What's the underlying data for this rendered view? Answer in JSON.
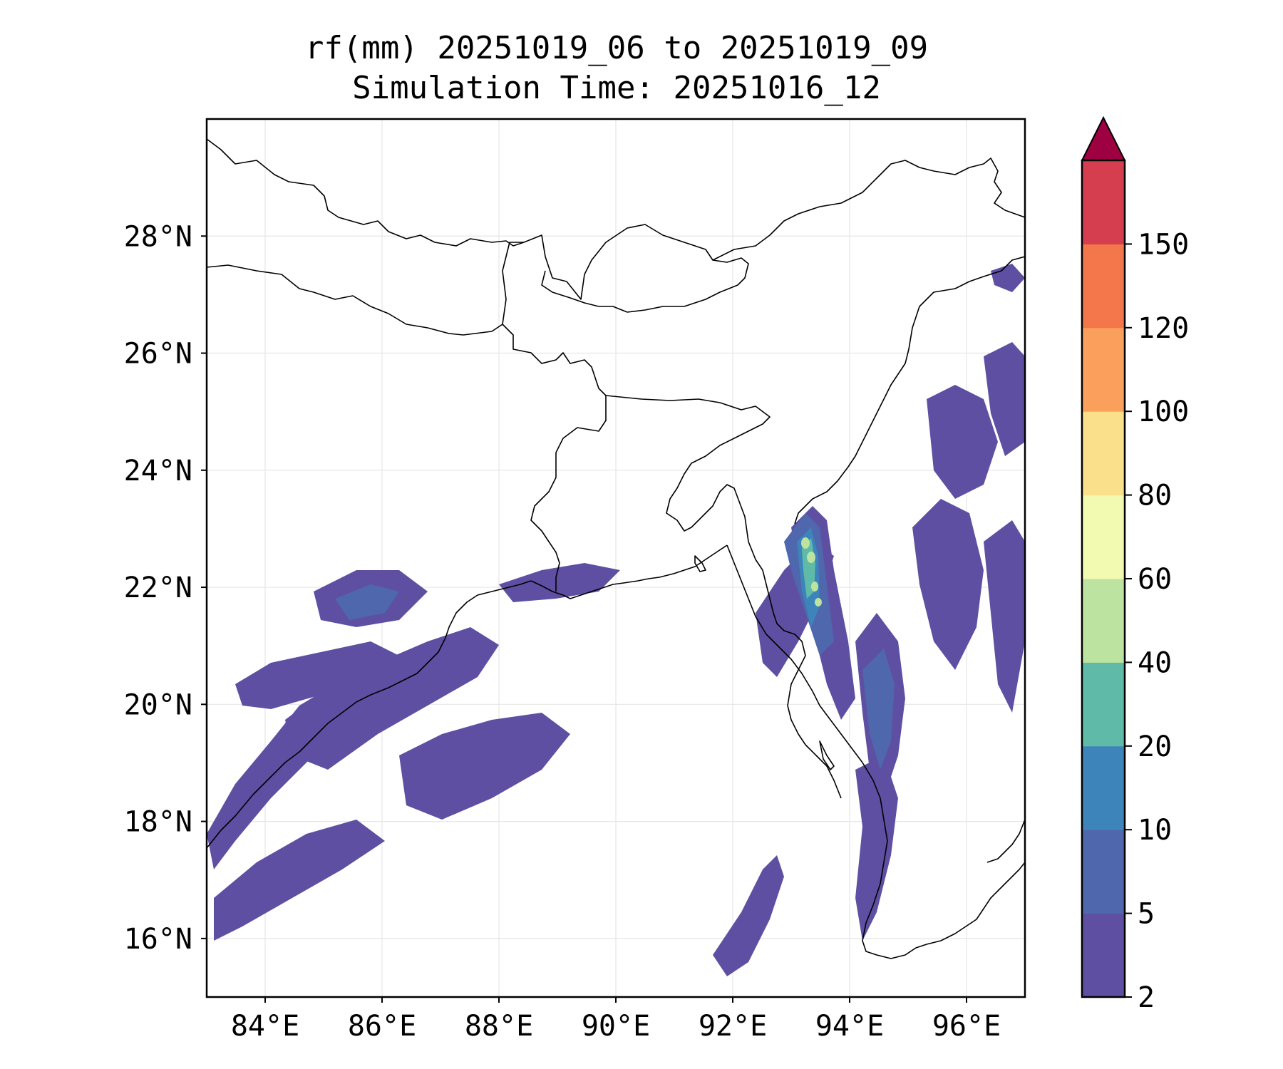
{
  "title": {
    "line1": "rf(mm) 20251019_06 to 20251019_09",
    "line2": "Simulation Time: 20251016_12"
  },
  "map": {
    "lon_range": [
      83,
      97
    ],
    "lat_range": [
      15,
      30
    ],
    "x_ticks": [
      "84°E",
      "86°E",
      "88°E",
      "90°E",
      "92°E",
      "94°E",
      "96°E"
    ],
    "y_ticks": [
      "16°N",
      "18°N",
      "20°N",
      "22°N",
      "24°N",
      "26°N",
      "28°N"
    ],
    "gridlines": true,
    "coastlines": true,
    "country_borders": true
  },
  "colorbar": {
    "levels": [
      "2",
      "5",
      "10",
      "20",
      "40",
      "60",
      "80",
      "100",
      "120",
      "150"
    ],
    "colors": [
      "#5e4fa2",
      "#4f67ad",
      "#3d84bb",
      "#5fbaa8",
      "#bde3a0",
      "#f2f9b0",
      "#fbe08c",
      "#fba05c",
      "#f4774c",
      "#d53e4f"
    ],
    "extend_color": "#9e0142",
    "extend": "max"
  }
}
